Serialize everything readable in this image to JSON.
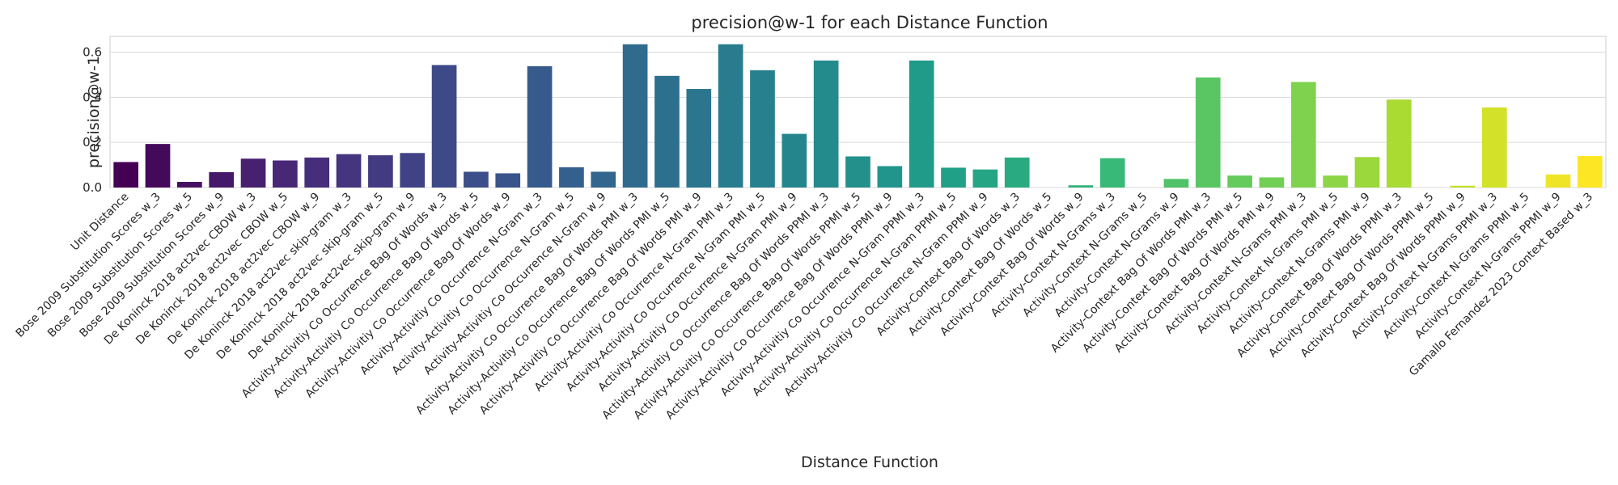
{
  "chart_data": {
    "type": "bar",
    "title": "precision@w-1 for each Distance Function",
    "xlabel": "Distance Function",
    "ylabel": "precision@w-1",
    "ylim": [
      0,
      0.67
    ],
    "yticks": [
      0.0,
      0.2,
      0.4,
      0.6
    ],
    "grid": "horizontal",
    "categories": [
      "Unit Distance",
      "Bose 2009 Substitution Scores w_3",
      "Bose 2009 Substitution Scores w_5",
      "Bose 2009 Substitution Scores w_9",
      "De Koninck 2018 act2vec CBOW w_3",
      "De Koninck 2018 act2vec CBOW w_5",
      "De Koninck 2018 act2vec CBOW w_9",
      "De Koninck 2018 act2vec skip-gram w_3",
      "De Koninck 2018 act2vec skip-gram w_5",
      "De Koninck 2018 act2vec skip-gram w_9",
      "Activity-Activitiy Co Occurrence Bag Of Words w_3",
      "Activity-Activitiy Co Occurrence Bag Of Words w_5",
      "Activity-Activitiy Co Occurrence Bag Of Words w_9",
      "Activity-Activitiy Co Occurrence N-Gram w_3",
      "Activity-Activitiy Co Occurrence N-Gram w_5",
      "Activity-Activitiy Co Occurrence N-Gram w_9",
      "Activity-Activitiy Co Occurrence Bag Of Words PMI w_3",
      "Activity-Activitiy Co Occurrence Bag Of Words PMI w_5",
      "Activity-Activitiy Co Occurrence Bag Of Words PMI w_9",
      "Activity-Activitiy Co Occurrence N-Gram PMI w_3",
      "Activity-Activitiy Co Occurrence N-Gram PMI w_5",
      "Activity-Activitiy Co Occurrence N-Gram PMI w_9",
      "Activity-Activitiy Co Occurrence Bag Of Words PPMI w_3",
      "Activity-Activitiy Co Occurrence Bag Of Words PPMI w_5",
      "Activity-Activitiy Co Occurrence Bag Of Words PPMI w_9",
      "Activity-Activitiy Co Occurrence N-Gram PPMI w_3",
      "Activity-Activitiy Co Occurrence N-Gram PPMI w_5",
      "Activity-Activitiy Co Occurrence N-Gram PPMI w_9",
      "Activity-Context Bag Of Words w_3",
      "Activity-Context Bag Of Words w_5",
      "Activity-Context Bag Of Words w_9",
      "Activity-Context N-Grams w_3",
      "Activity-Context N-Grams w_5",
      "Activity-Context N-Grams w_9",
      "Activity-Context Bag Of Words PMI w_3",
      "Activity-Context Bag Of Words PMI w_5",
      "Activity-Context Bag Of Words PMI w_9",
      "Activity-Context N-Grams PMI w_3",
      "Activity-Context N-Grams PMI w_5",
      "Activity-Context N-Grams PMI w_9",
      "Activity-Context Bag Of Words PPMI w_3",
      "Activity-Context Bag Of Words PPMI w_5",
      "Activity-Context Bag Of Words PPMI w_9",
      "Activity-Context N-Grams PPMI w_3",
      "Activity-Context N-Grams PPMI w_5",
      "Activity-Context N-Grams PPMI w_9",
      "Gamallo Fernandez 2023 Context Based w_3"
    ],
    "values": [
      0.113,
      0.193,
      0.025,
      0.068,
      0.128,
      0.12,
      0.133,
      0.148,
      0.143,
      0.153,
      0.543,
      0.07,
      0.063,
      0.538,
      0.09,
      0.07,
      0.635,
      0.495,
      0.437,
      0.635,
      0.52,
      0.238,
      0.563,
      0.138,
      0.095,
      0.563,
      0.088,
      0.08,
      0.133,
      0.0,
      0.01,
      0.13,
      0.0,
      0.038,
      0.488,
      0.053,
      0.045,
      0.468,
      0.053,
      0.135,
      0.39,
      0.0,
      0.008,
      0.355,
      0.0,
      0.058,
      0.14
    ],
    "palette": "viridis",
    "palette_stops": [
      "#440154",
      "#482878",
      "#3e4a89",
      "#31688e",
      "#26828e",
      "#1f9e89",
      "#35b779",
      "#6ece58",
      "#b5de2b",
      "#fde725"
    ]
  }
}
